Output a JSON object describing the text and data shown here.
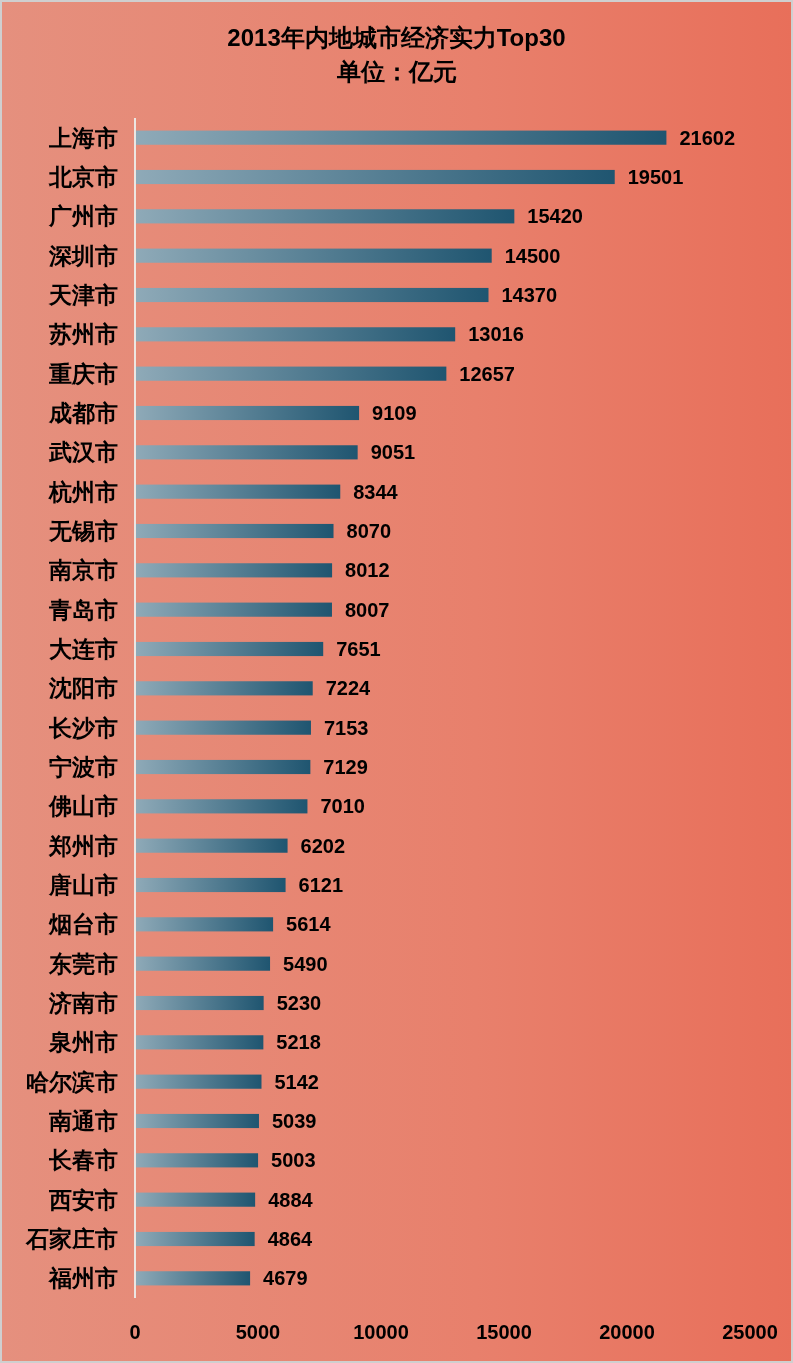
{
  "chart_data": {
    "type": "bar",
    "orientation": "horizontal",
    "title": "2013年内地城市经济实力Top30",
    "subtitle": "单位：亿元",
    "categories": [
      "上海市",
      "北京市",
      "广州市",
      "深圳市",
      "天津市",
      "苏州市",
      "重庆市",
      "成都市",
      "武汉市",
      "杭州市",
      "无锡市",
      "南京市",
      "青岛市",
      "大连市",
      "沈阳市",
      "长沙市",
      "宁波市",
      "佛山市",
      "郑州市",
      "唐山市",
      "烟台市",
      "东莞市",
      "济南市",
      "泉州市",
      "哈尔滨市",
      "南通市",
      "长春市",
      "西安市",
      "石家庄市",
      "福州市"
    ],
    "values": [
      21602,
      19501,
      15420,
      14500,
      14370,
      13016,
      12657,
      9109,
      9051,
      8344,
      8070,
      8012,
      8007,
      7651,
      7224,
      7153,
      7129,
      7010,
      6202,
      6121,
      5614,
      5490,
      5230,
      5218,
      5142,
      5039,
      5003,
      4884,
      4864,
      4679
    ],
    "color": "#1f5570",
    "xlim": [
      0,
      25000
    ],
    "xticks": [
      0,
      5000,
      10000,
      15000,
      20000,
      25000
    ],
    "data_labels": true
  }
}
